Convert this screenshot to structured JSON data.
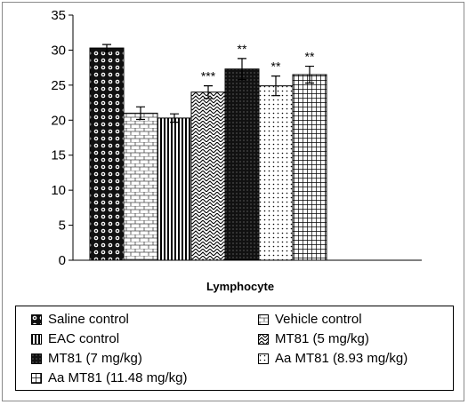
{
  "chart_data": {
    "type": "bar",
    "xlabel": "Lymphocyte",
    "ylim": [
      0,
      35
    ],
    "yticks": [
      0,
      5,
      10,
      15,
      20,
      25,
      30,
      35
    ],
    "series": [
      {
        "name": "Saline control",
        "value": 30.3,
        "error": 0.5,
        "significance": "",
        "pattern": "dots-black"
      },
      {
        "name": "Vehicle control",
        "value": 21.0,
        "error": 0.9,
        "significance": "",
        "pattern": "brick"
      },
      {
        "name": "EAC control",
        "value": 20.3,
        "error": 0.6,
        "significance": "",
        "pattern": "vlines"
      },
      {
        "name": "MT81 (5 mg/kg)",
        "value": 24.0,
        "error": 0.9,
        "significance": "***",
        "pattern": "zigzag"
      },
      {
        "name": "MT81 (7 mg/kg)",
        "value": 27.3,
        "error": 1.5,
        "significance": "**",
        "pattern": "dark-dots"
      },
      {
        "name": "Aa MT81 (8.93 mg/kg)",
        "value": 24.9,
        "error": 1.4,
        "significance": "**",
        "pattern": "fine-dots"
      },
      {
        "name": "Aa MT81 (11.48 mg/kg)",
        "value": 26.5,
        "error": 1.2,
        "significance": "**",
        "pattern": "grid"
      }
    ],
    "legend_position": "bottom"
  }
}
